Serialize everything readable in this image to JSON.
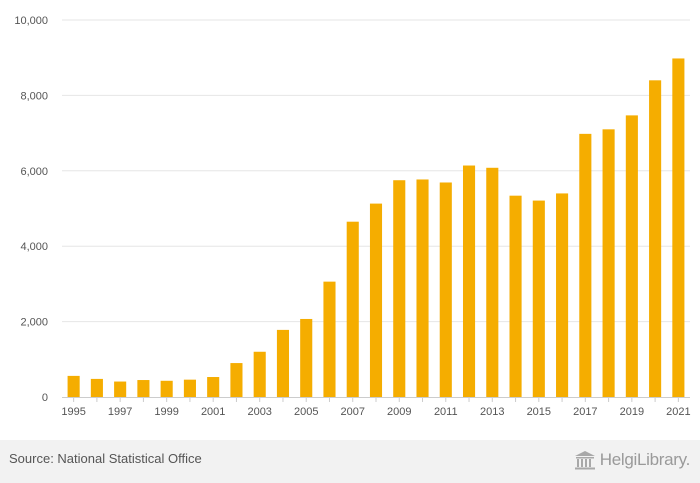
{
  "chart_data": {
    "type": "bar",
    "title": "",
    "xlabel": "",
    "ylabel": "",
    "categories": [
      "1995",
      "1996",
      "1997",
      "1998",
      "1999",
      "2000",
      "2001",
      "2002",
      "2003",
      "2004",
      "2005",
      "2006",
      "2007",
      "2008",
      "2009",
      "2010",
      "2011",
      "2012",
      "2013",
      "2014",
      "2015",
      "2016",
      "2017",
      "2018",
      "2019",
      "2020",
      "2021"
    ],
    "x_tick_labels": [
      "1995",
      "1997",
      "1999",
      "2001",
      "2003",
      "2005",
      "2007",
      "2009",
      "2011",
      "2013",
      "2015",
      "2017",
      "2019",
      "2021"
    ],
    "values": [
      560,
      480,
      410,
      450,
      430,
      460,
      530,
      900,
      1200,
      1780,
      2070,
      3060,
      4650,
      5130,
      5750,
      5770,
      5690,
      6140,
      6080,
      5340,
      5210,
      5400,
      6980,
      7100,
      7470,
      8400,
      8980
    ],
    "ylim": [
      0,
      10000
    ],
    "y_ticks": [
      0,
      2000,
      4000,
      6000,
      8000,
      10000
    ],
    "y_tick_labels": [
      "0",
      "2,000",
      "4,000",
      "6,000",
      "8,000",
      "10,000"
    ],
    "grid": true,
    "bar_color": "#f5ad00"
  },
  "footer": {
    "source": "Source: National Statistical Office",
    "brand": "HelgiLibrary.",
    "brand_icon": "library-building-icon"
  }
}
